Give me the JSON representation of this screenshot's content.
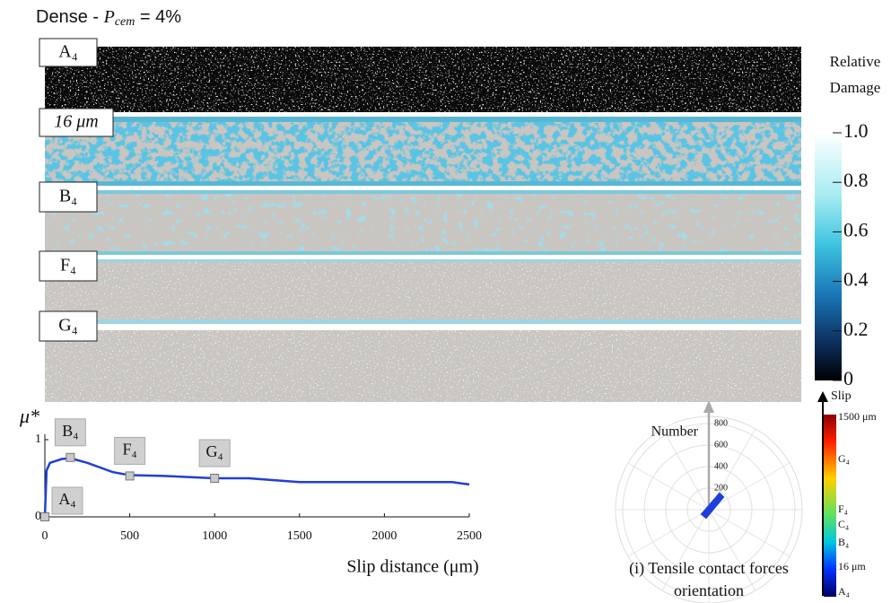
{
  "title": {
    "prefix": "Dense - ",
    "symbol": "P",
    "subscript": "cem",
    "suffix": " = 4%"
  },
  "panels": [
    {
      "label": "A₄"
    },
    {
      "label": "16 μm"
    },
    {
      "label": "B₄"
    },
    {
      "label": "F₄"
    },
    {
      "label": "G₄"
    }
  ],
  "damage_colorbar": {
    "title_lines": [
      "Relative",
      "Damage"
    ],
    "lim": [
      0,
      1
    ],
    "ticks": [
      {
        "value": 1,
        "label": "1.0"
      },
      0.8,
      0.6,
      0.4,
      0.2,
      0
    ]
  },
  "friction_plot": {
    "y_label": "μ*",
    "x_label": "Slip distance (μm)",
    "xlim": [
      0,
      2500
    ],
    "ylim": [
      0,
      1
    ],
    "xticks": [
      0,
      500,
      1000,
      1500,
      2000,
      2500
    ],
    "yticks": [
      0,
      1
    ],
    "color": "#1f3fd8",
    "x": [
      0,
      10,
      30,
      100,
      150,
      250,
      400,
      500,
      700,
      1000,
      1200,
      1500,
      2000,
      2400,
      2500
    ],
    "values": [
      0,
      0.6,
      0.7,
      0.75,
      0.76,
      0.7,
      0.58,
      0.54,
      0.53,
      0.5,
      0.5,
      0.45,
      0.45,
      0.45,
      0.42
    ],
    "markers": [
      {
        "label": "A₄",
        "x": 0,
        "y": 0
      },
      {
        "label": "B₄",
        "x": 150,
        "y": 0.77
      },
      {
        "label": "F₄",
        "x": 500,
        "y": 0.53
      },
      {
        "label": "G₄",
        "x": 1000,
        "y": 0.5
      }
    ]
  },
  "polar_plot": {
    "axis_label": "Number",
    "rticks": [
      200,
      400,
      600,
      800
    ],
    "caption_lines": [
      "(i) Tensile contact forces",
      "orientation"
    ]
  },
  "slip_colorbar": {
    "title": "Slip",
    "labels": [
      "1500 μm",
      "G₄",
      "F₄",
      "C₄",
      "B₄",
      "16 μm",
      "A₄"
    ]
  }
}
